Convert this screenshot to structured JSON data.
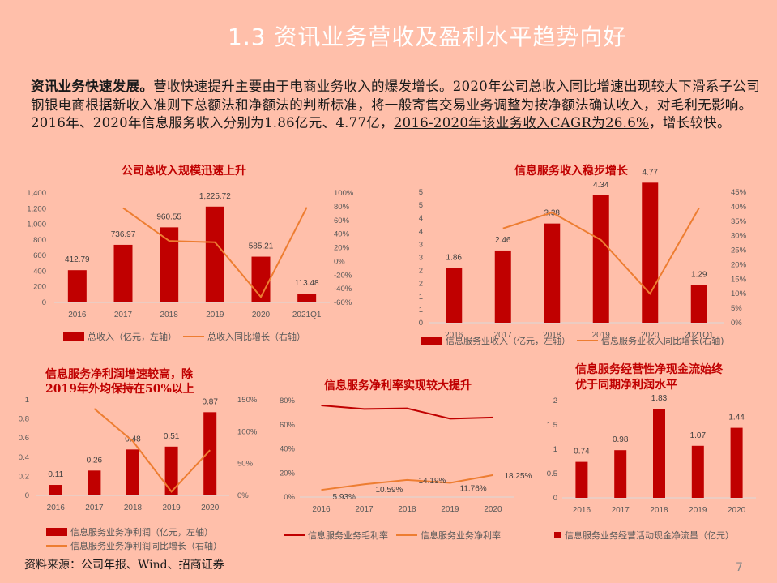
{
  "slide": {
    "title": "1.3 资讯业务营收及盈利水平趋势向好",
    "paragraph": {
      "bold_lead": "资讯业务快速发展。",
      "text1": "营收快速提升主要由于电商业务收入的爆发增长。2020年公司总收入同比增速出现较大下滑系子公司钢银电商根据新收入准则下总额法和净额法的判断标准，将一般寄售交易业务调整为按净额法确认收入，对毛利无影响。2016年、2020年信息服务收入分别为1.86亿元、4.77亿，",
      "underlined": "2016-2020年该业务收入CAGR为26.6%",
      "text2": "，增长较快。"
    },
    "source": "资料来源：公司年报、Wind、招商证券",
    "page_number": "7"
  },
  "colors": {
    "bar": "#C00000",
    "line": "#ED7D31",
    "title_red": "#C00000",
    "background": "#FFBFAA"
  },
  "chart_data": [
    {
      "id": "total_revenue",
      "type": "bar+line",
      "title": "公司总收入规模迅速上升",
      "categories": [
        "2016",
        "2017",
        "2018",
        "2019",
        "2020",
        "2021Q1"
      ],
      "series": [
        {
          "name": "总收入（亿元，左轴）",
          "type": "bar",
          "axis": "left",
          "values": [
            412.79,
            736.97,
            960.55,
            1225.72,
            585.21,
            113.48
          ]
        },
        {
          "name": "总收入同比增长（右轴）",
          "type": "line",
          "axis": "right",
          "values": [
            null,
            78,
            30,
            28,
            -52,
            79
          ]
        }
      ],
      "left_axis": {
        "ticks": [
          "0",
          "200",
          "400",
          "600",
          "800",
          "1,000",
          "1,200",
          "1,400"
        ],
        "range": [
          0,
          1400
        ]
      },
      "right_axis": {
        "ticks": [
          "-60%",
          "-40%",
          "-20%",
          "0%",
          "20%",
          "40%",
          "60%",
          "80%",
          "100%"
        ],
        "range": [
          -60,
          100
        ]
      },
      "data_labels": [
        "412.79",
        "736.97",
        "960.55",
        "1,225.72",
        "585.21",
        "113.48"
      ]
    },
    {
      "id": "info_service_revenue",
      "type": "bar+line",
      "title": "信息服务收入稳步增长",
      "categories": [
        "2016",
        "2017",
        "2018",
        "2019",
        "2020",
        "2021Q1"
      ],
      "series": [
        {
          "name": "信息服务业收入（亿元，左轴）",
          "type": "bar",
          "axis": "left",
          "values": [
            1.86,
            2.46,
            3.38,
            4.34,
            4.77,
            1.29
          ]
        },
        {
          "name": "信息服务业收入同比增长(右轴)",
          "type": "line",
          "axis": "right",
          "values": [
            null,
            32.5,
            38,
            28.5,
            10,
            39.5
          ]
        }
      ],
      "left_axis": {
        "ticks": [
          "0",
          "1",
          "1",
          "2",
          "2",
          "3",
          "3",
          "4",
          "4",
          "5",
          "5"
        ],
        "range": [
          0,
          5
        ]
      },
      "right_axis": {
        "ticks": [
          "0%",
          "5%",
          "10%",
          "15%",
          "20%",
          "25%",
          "30%",
          "35%",
          "40%",
          "45%"
        ],
        "range": [
          0,
          45
        ]
      },
      "data_labels": [
        "1.86",
        "2.46",
        "3.38",
        "4.34",
        "4.77",
        "1.29"
      ]
    },
    {
      "id": "info_net_profit",
      "type": "bar+line",
      "title": "信息服务净利润增速较高，除2019年外均保持在50%以上",
      "title_lines": [
        "信息服务净利润增速较高，除",
        "2019年外均保持在50%以上"
      ],
      "categories": [
        "2016",
        "2017",
        "2018",
        "2019",
        "2020"
      ],
      "series": [
        {
          "name": "信息服务业务净利润（亿元，左轴）",
          "type": "bar",
          "axis": "left",
          "values": [
            0.11,
            0.26,
            0.48,
            0.51,
            0.87
          ]
        },
        {
          "name": "信息服务业务净利润同比增长（右轴）",
          "type": "line",
          "axis": "right",
          "values": [
            null,
            136,
            85,
            6,
            71
          ]
        }
      ],
      "left_axis": {
        "ticks": [
          "0",
          "0.2",
          "0.4",
          "0.6",
          "0.8",
          "1"
        ],
        "range": [
          0,
          1
        ]
      },
      "right_axis": {
        "ticks": [
          "0%",
          "50%",
          "100%",
          "150%"
        ],
        "range": [
          0,
          150
        ]
      },
      "data_labels": [
        "0.11",
        "0.26",
        "0.48",
        "0.51",
        "0.87"
      ]
    },
    {
      "id": "info_margin",
      "type": "line",
      "title": "信息服务净利率实现较大提升",
      "categories": [
        "2016",
        "2017",
        "2018",
        "2019",
        "2020"
      ],
      "series": [
        {
          "name": "信息服务业务毛利率",
          "values": [
            76,
            73,
            73.5,
            65,
            66
          ]
        },
        {
          "name": "信息服务业务净利率",
          "values": [
            5.93,
            10.59,
            14.19,
            11.76,
            18.25
          ]
        }
      ],
      "y_axis": {
        "ticks": [
          "0%",
          "20%",
          "40%",
          "60%",
          "80%"
        ],
        "range": [
          0,
          80
        ]
      },
      "data_labels": [
        "5.93%",
        "10.59%",
        "14.19%",
        "11.76%",
        "18.25%"
      ]
    },
    {
      "id": "info_op_cashflow",
      "type": "bar",
      "title": "信息服务经营性净现金流始终优于同期净利润水平",
      "title_lines": [
        "信息服务经营性净现金流始终",
        "优于同期净利润水平"
      ],
      "categories": [
        "2016",
        "2017",
        "2018",
        "2019",
        "2020"
      ],
      "series": [
        {
          "name": "信息服务业务经营活动现金净流量（亿元）",
          "type": "bar",
          "values": [
            0.74,
            0.98,
            1.83,
            1.07,
            1.44
          ]
        }
      ],
      "y_axis": {
        "ticks": [
          "0",
          "0.5",
          "1",
          "1.5",
          "2"
        ],
        "range": [
          0,
          2
        ]
      },
      "data_labels": [
        "0.74",
        "0.98",
        "1.83",
        "1.07",
        "1.44"
      ]
    }
  ]
}
